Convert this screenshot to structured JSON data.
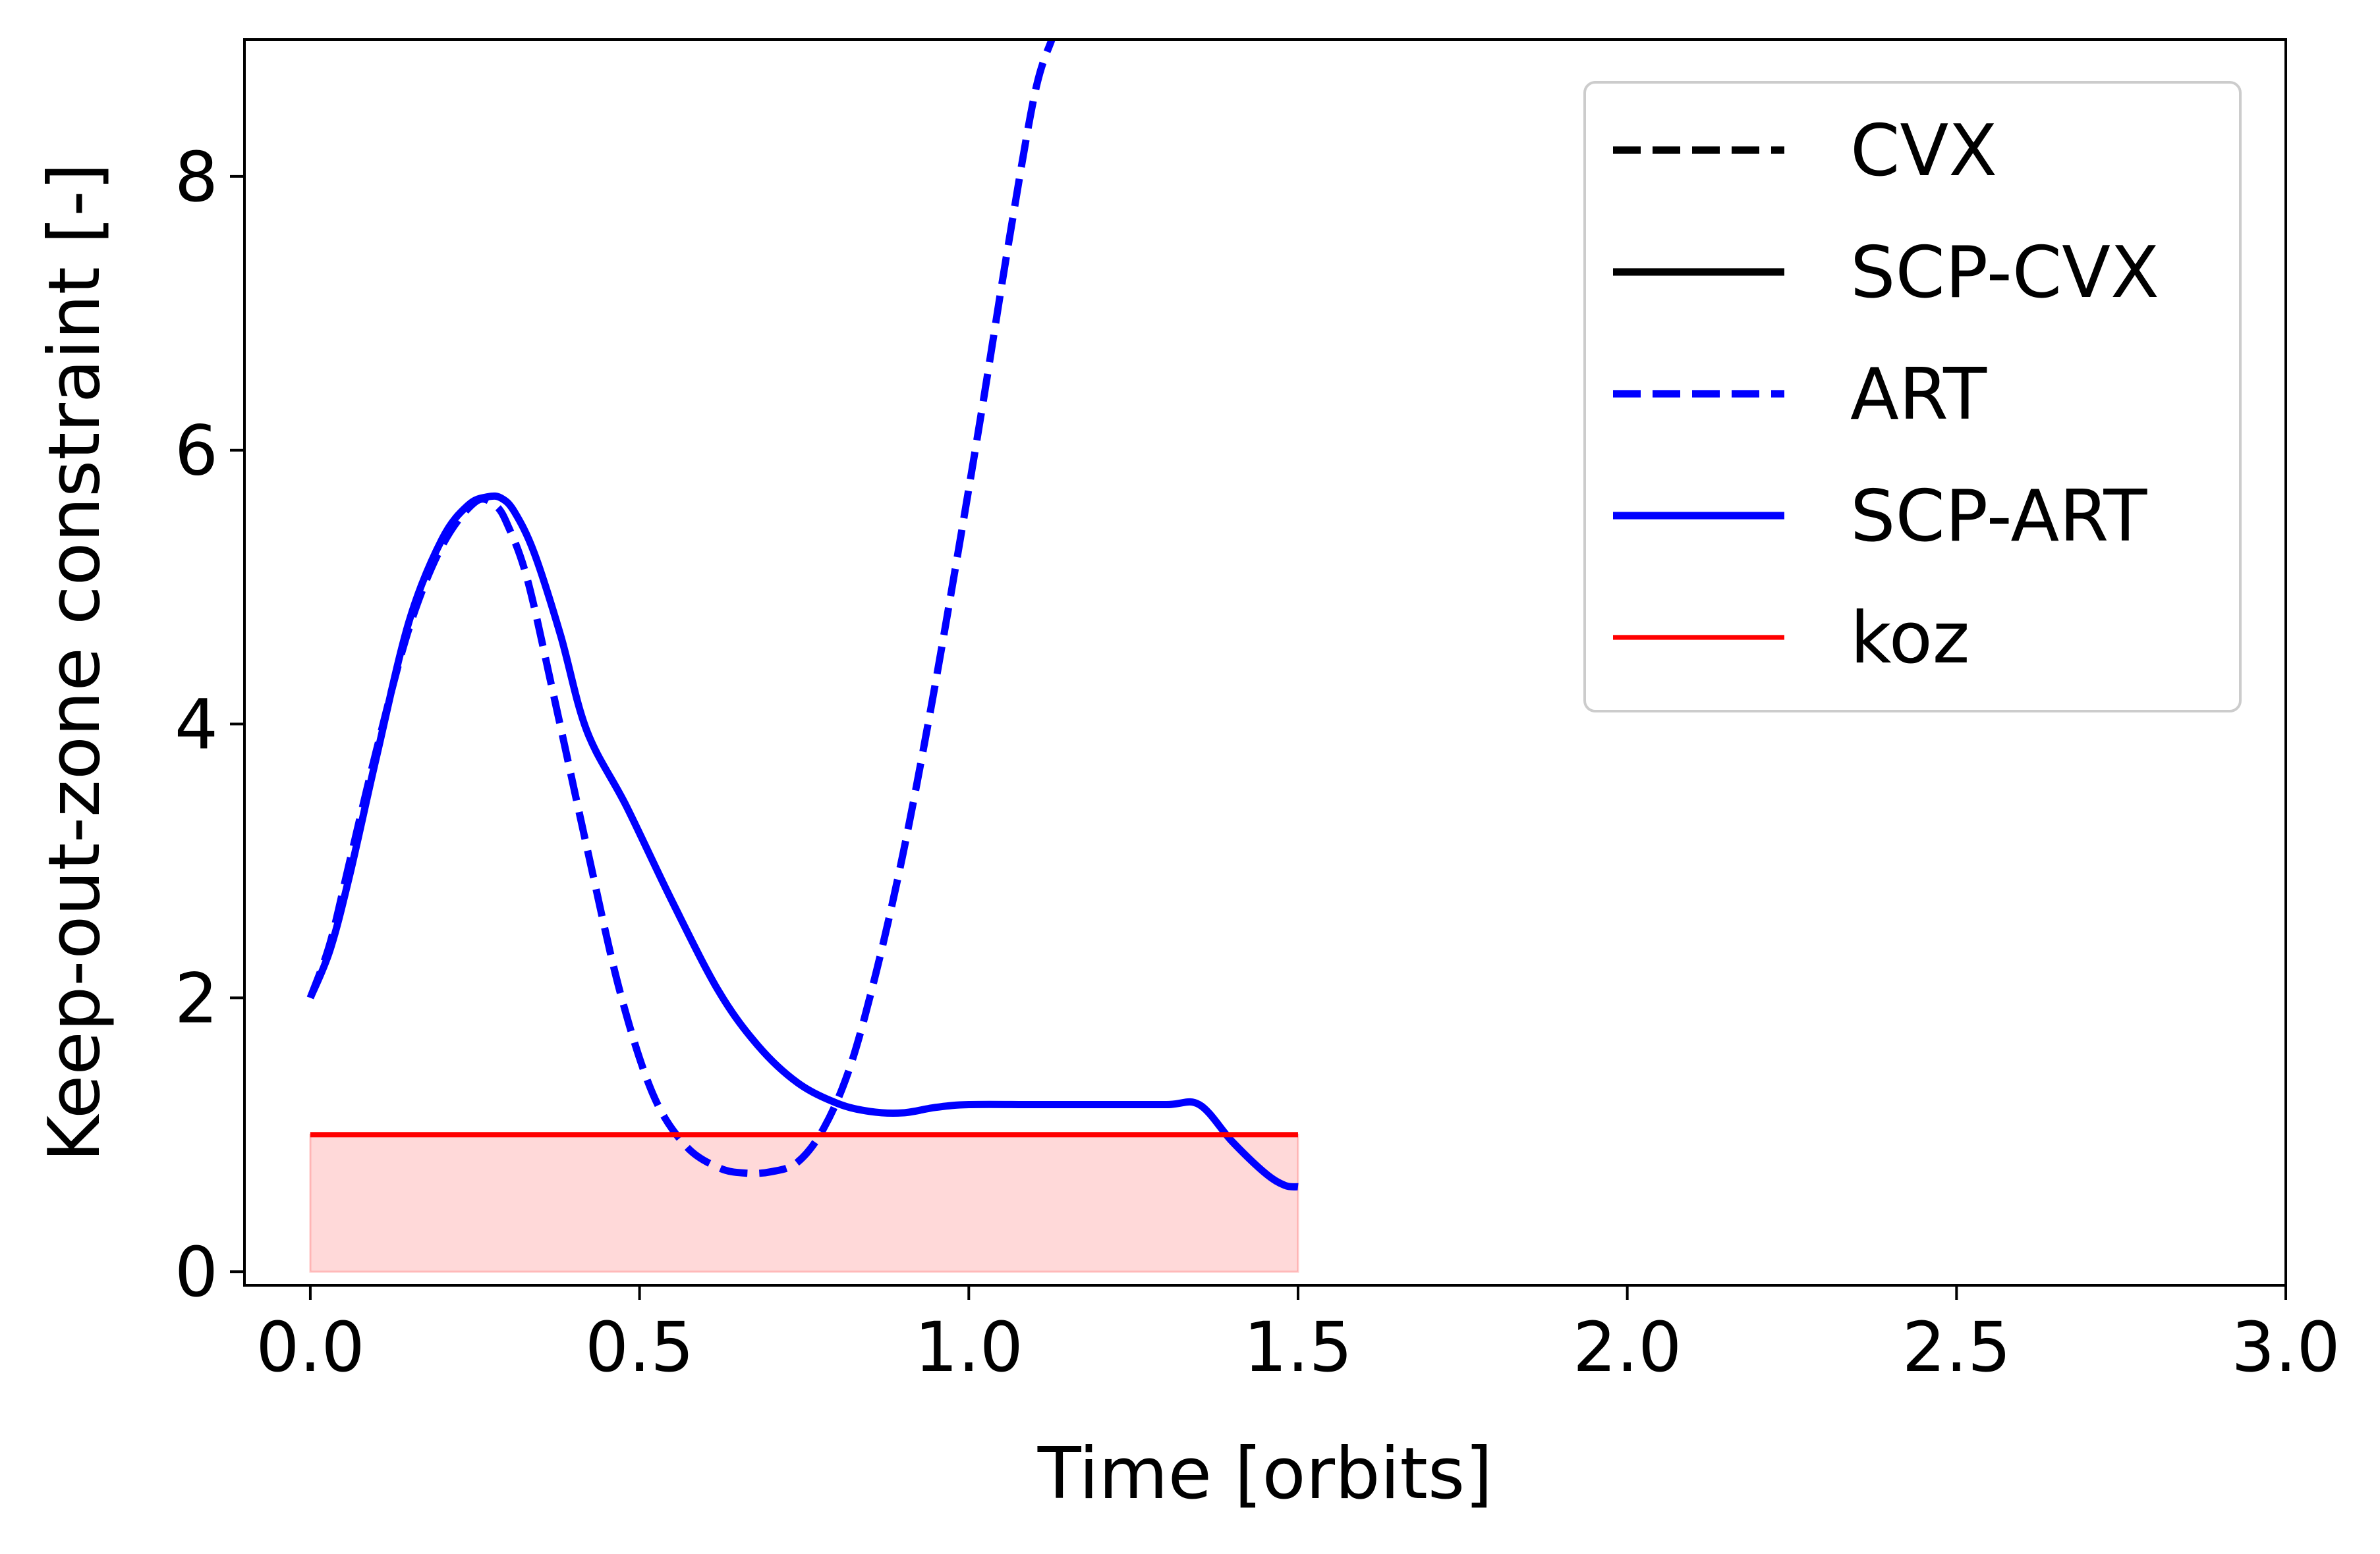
{
  "chart_data": {
    "type": "line",
    "title": "",
    "xlabel": "Time [orbits]",
    "ylabel": "Keep-out-zone constraint [-]",
    "xlim": [
      -0.1,
      3.0
    ],
    "ylim": [
      -0.1,
      9.0
    ],
    "xticks": [
      0.0,
      0.5,
      1.0,
      1.5,
      2.0,
      2.5,
      3.0
    ],
    "xtick_labels": [
      "0.0",
      "0.5",
      "1.0",
      "1.5",
      "2.0",
      "2.5",
      "3.0"
    ],
    "yticks": [
      0,
      2,
      4,
      6,
      8
    ],
    "ytick_labels": [
      "0",
      "2",
      "4",
      "6",
      "8"
    ],
    "grid": false,
    "legend_position": "top-right",
    "legend": [
      {
        "label": "CVX",
        "color": "#000000",
        "dash": true,
        "width": 2.8
      },
      {
        "label": "SCP-CVX",
        "color": "#000000",
        "dash": false,
        "width": 2.8
      },
      {
        "label": "ART",
        "color": "#0000ff",
        "dash": true,
        "width": 2.8
      },
      {
        "label": "SCP-ART",
        "color": "#0000ff",
        "dash": false,
        "width": 2.8
      },
      {
        "label": "koz",
        "color": "#ff0000",
        "dash": false,
        "width": 1.8
      }
    ],
    "series": [
      {
        "name": "ART",
        "color": "#0000ff",
        "style": "dashed",
        "x": [
          0.0,
          0.03,
          0.06,
          0.1,
          0.15,
          0.2,
          0.25,
          0.28,
          0.3,
          0.33,
          0.37,
          0.42,
          0.47,
          0.52,
          0.57,
          0.62,
          0.66,
          0.7,
          0.74,
          0.78,
          0.82,
          0.86,
          0.9,
          0.94,
          0.98,
          1.02,
          1.06,
          1.1,
          1.126
        ],
        "y": [
          2.0,
          2.4,
          3.0,
          3.8,
          4.7,
          5.3,
          5.62,
          5.6,
          5.45,
          5.05,
          4.2,
          3.1,
          2.05,
          1.3,
          0.92,
          0.76,
          0.72,
          0.73,
          0.8,
          1.05,
          1.5,
          2.2,
          3.05,
          4.05,
          5.15,
          6.3,
          7.5,
          8.6,
          9.0
        ]
      },
      {
        "name": "SCP-ART",
        "color": "#0000ff",
        "style": "solid",
        "x": [
          0.0,
          0.03,
          0.06,
          0.1,
          0.15,
          0.2,
          0.24,
          0.27,
          0.29,
          0.31,
          0.34,
          0.38,
          0.42,
          0.48,
          0.55,
          0.62,
          0.68,
          0.74,
          0.8,
          0.85,
          0.9,
          0.95,
          1.0,
          1.1,
          1.2,
          1.3,
          1.35,
          1.4,
          1.45,
          1.48,
          1.5
        ],
        "y": [
          2.0,
          2.35,
          2.9,
          3.75,
          4.75,
          5.35,
          5.6,
          5.66,
          5.65,
          5.55,
          5.25,
          4.65,
          3.95,
          3.4,
          2.7,
          2.05,
          1.65,
          1.38,
          1.23,
          1.17,
          1.16,
          1.2,
          1.22,
          1.22,
          1.22,
          1.22,
          1.22,
          0.95,
          0.72,
          0.63,
          0.62
        ]
      },
      {
        "name": "koz",
        "color": "#ff0000",
        "style": "solid",
        "x": [
          0.0,
          1.5
        ],
        "y": [
          1.0,
          1.0
        ]
      }
    ],
    "fill_region": {
      "x": [
        0.0,
        1.5
      ],
      "y_bottom": 0.0,
      "y_top": 1.0,
      "color": "#ff0000",
      "opacity": 0.15
    }
  }
}
